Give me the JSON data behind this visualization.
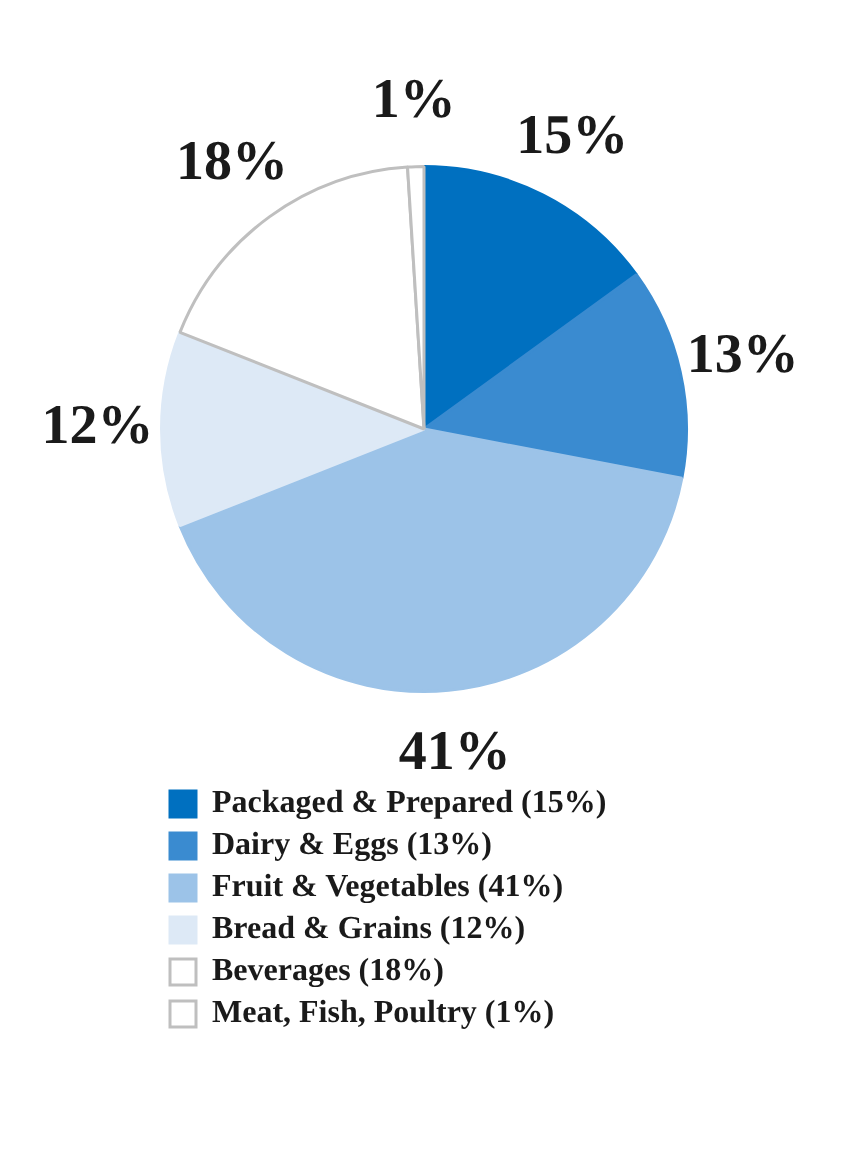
{
  "chart_data": {
    "type": "pie",
    "categories": [
      "Packaged & Prepared (15%)",
      "Dairy & Eggs (13%)",
      "Fruit & Vegetables (41%)",
      "Bread & Grains (12%)",
      "Beverages (18%)",
      "Meat, Fish, Poultry (1%)"
    ],
    "values": [
      15,
      13,
      41,
      12,
      18,
      1
    ],
    "colors": [
      "#0070c0",
      "#3a8bd0",
      "#9cc3e8",
      "#dde9f6",
      "#ffffff",
      "#ffffff"
    ],
    "value_labels": [
      "15%",
      "13%",
      "41%",
      "12%",
      "18%",
      "1%"
    ],
    "legend": "bottom"
  }
}
